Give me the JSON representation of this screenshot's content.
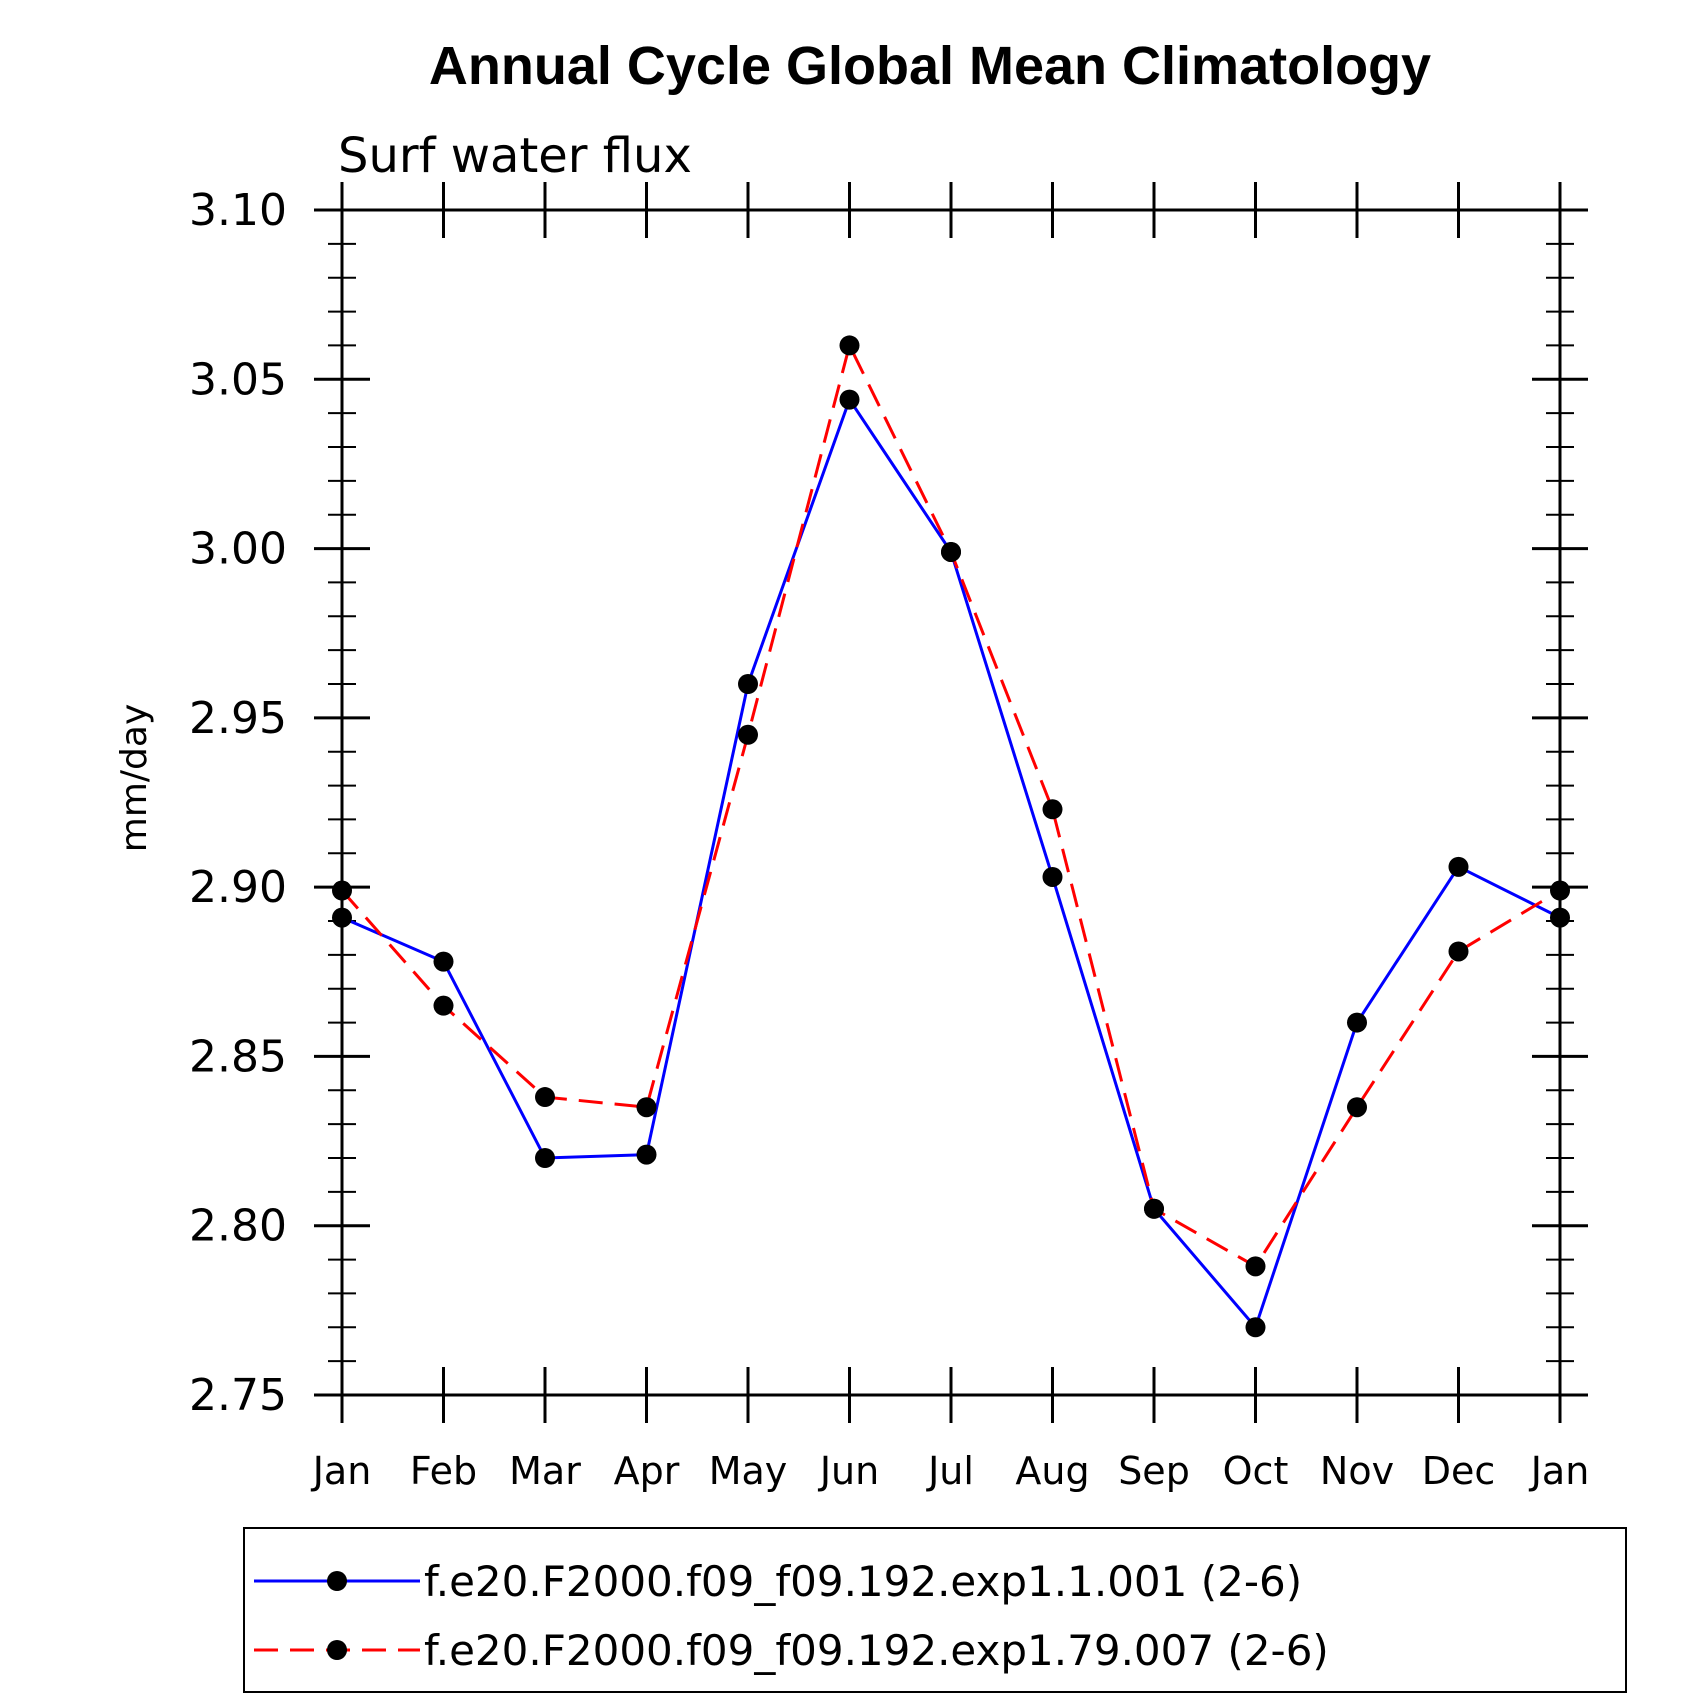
{
  "chart_data": {
    "type": "line",
    "title": "Annual Cycle Global Mean Climatology",
    "subtitle": "Surf water flux",
    "ylabel": "mm/day",
    "xlabel": "",
    "categories": [
      "Jan",
      "Feb",
      "Mar",
      "Apr",
      "May",
      "Jun",
      "Jul",
      "Aug",
      "Sep",
      "Oct",
      "Nov",
      "Dec",
      "Jan"
    ],
    "ylim": [
      2.75,
      3.1
    ],
    "yticks": [
      "2.75",
      "2.80",
      "2.85",
      "2.90",
      "2.95",
      "3.00",
      "3.05",
      "3.10"
    ],
    "grid": false,
    "legend_position": "bottom",
    "series": [
      {
        "name": "f.e20.F2000.f09_f09.192.exp1.1.001 (2-6)",
        "color": "#0000ff",
        "style": "solid",
        "values": [
          2.891,
          2.878,
          2.82,
          2.821,
          2.96,
          3.044,
          2.999,
          2.903,
          2.805,
          2.77,
          2.86,
          2.906,
          2.891
        ]
      },
      {
        "name": "f.e20.F2000.f09_f09.192.exp1.79.007 (2-6)",
        "color": "#ff0000",
        "style": "dashed",
        "values": [
          2.899,
          2.865,
          2.838,
          2.835,
          2.945,
          3.06,
          2.999,
          2.923,
          2.805,
          2.788,
          2.835,
          2.881,
          2.899
        ]
      }
    ]
  }
}
